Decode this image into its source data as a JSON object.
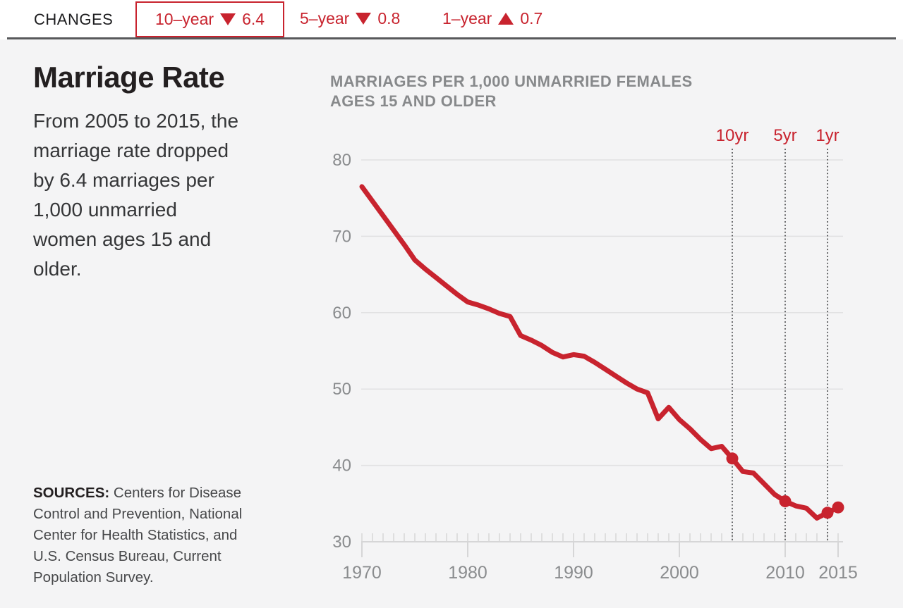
{
  "changes_bar": {
    "label": "CHANGES",
    "items": [
      {
        "period": "10–year",
        "direction": "down",
        "value": "6.4",
        "highlighted": true
      },
      {
        "period": "5–year",
        "direction": "down",
        "value": "0.8",
        "highlighted": false
      },
      {
        "period": "1–year",
        "direction": "up",
        "value": "0.7",
        "highlighted": false
      }
    ]
  },
  "panel": {
    "title": "Marriage Rate",
    "description_lines": [
      "From 2005 to 2015, the",
      "marriage rate dropped",
      "by 6.4 marriages per",
      "1,000 unmarried",
      "women ages 15 and",
      "older."
    ],
    "sources_label": "SOURCES:",
    "sources_lines_rest": [
      " Centers for Disease",
      "Control and Prevention, National",
      "Center for Health Statistics, and",
      "U.S. Census Bureau, Current",
      "Population Survey."
    ]
  },
  "chart_data": {
    "type": "line",
    "title_lines": [
      "MARRIAGES PER 1,000 UNMARRIED FEMALES",
      "AGES 15 AND OLDER"
    ],
    "x": [
      1970,
      1971,
      1972,
      1973,
      1974,
      1975,
      1976,
      1977,
      1978,
      1979,
      1980,
      1981,
      1982,
      1983,
      1984,
      1985,
      1986,
      1987,
      1988,
      1989,
      1990,
      1991,
      1992,
      1993,
      1994,
      1995,
      1996,
      1997,
      1998,
      1999,
      2000,
      2001,
      2002,
      2003,
      2004,
      2005,
      2006,
      2007,
      2008,
      2009,
      2010,
      2011,
      2012,
      2013,
      2014,
      2015
    ],
    "values": [
      76.5,
      74.6,
      72.7,
      70.8,
      68.9,
      66.9,
      65.7,
      64.6,
      63.5,
      62.4,
      61.4,
      61.0,
      60.5,
      59.9,
      59.5,
      57.0,
      56.4,
      55.7,
      54.8,
      54.2,
      54.5,
      54.3,
      53.5,
      52.6,
      51.7,
      50.8,
      50.0,
      49.5,
      46.1,
      47.6,
      46.0,
      44.8,
      43.4,
      42.2,
      42.5,
      40.9,
      39.2,
      39.0,
      37.6,
      36.2,
      35.3,
      34.7,
      34.4,
      33.1,
      33.8,
      34.5
    ],
    "ylim": [
      30,
      80
    ],
    "yticks": [
      30,
      40,
      50,
      60,
      70,
      80
    ],
    "xticks": [
      1970,
      1980,
      1990,
      2000,
      2010,
      2015
    ],
    "markers": [
      {
        "year": 2005,
        "value": 40.9,
        "label": "10yr"
      },
      {
        "year": 2010,
        "value": 35.3,
        "label": "5yr"
      },
      {
        "year": 2014,
        "value": 33.8,
        "label": "1yr"
      },
      {
        "year": 2015,
        "value": 34.5,
        "label": ""
      }
    ],
    "grid": true,
    "legend": "none",
    "series_color": "#c8232e",
    "guide_line_color": "#4b4c4e",
    "axis_label_color": "#8a8c8e"
  }
}
